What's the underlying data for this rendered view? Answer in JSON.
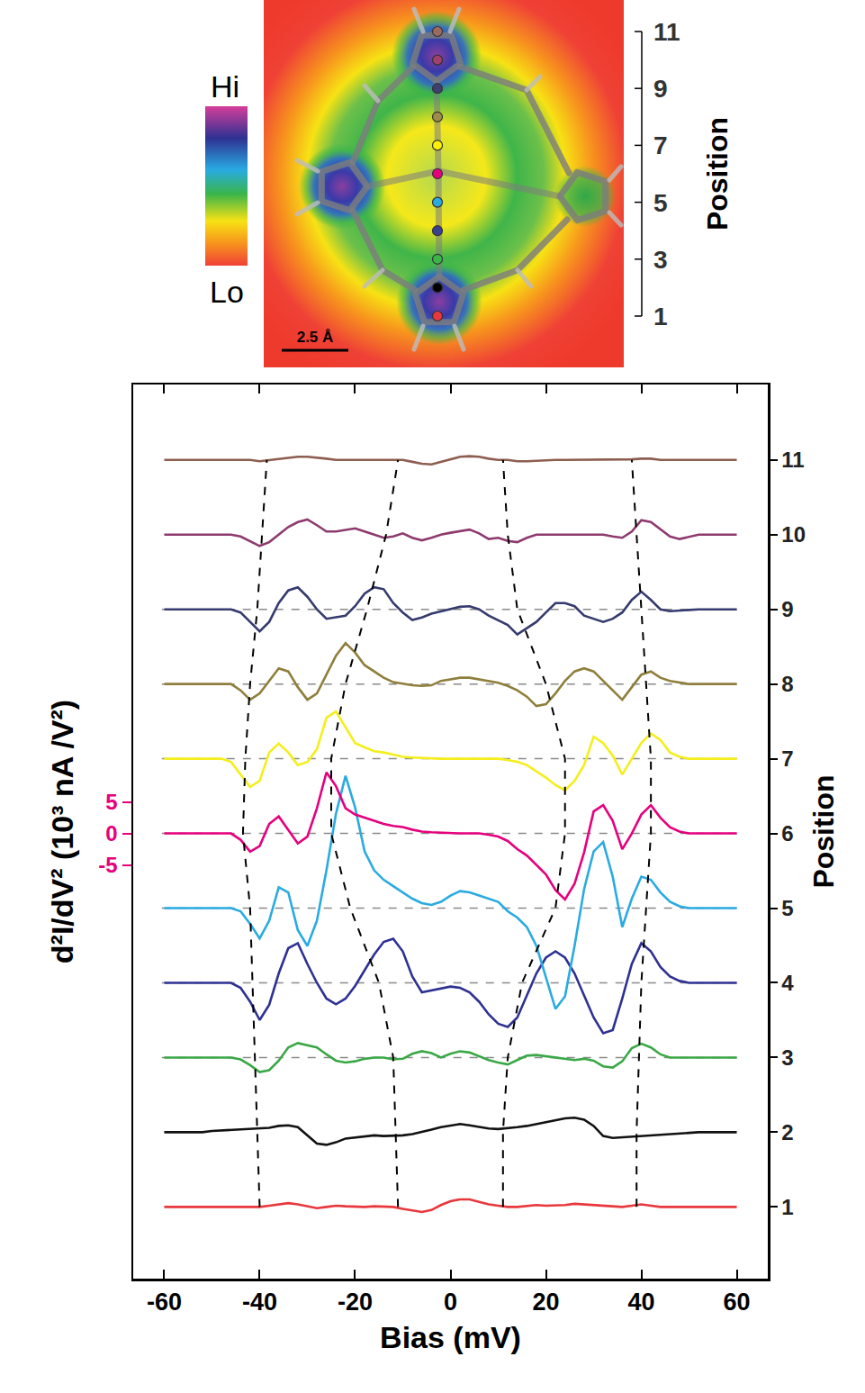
{
  "image": {
    "colorbar": {
      "high": "Hi",
      "low": "Lo"
    },
    "scale_bar": "2.5 Å",
    "axis_title": "Position",
    "ticks": [
      1,
      3,
      5,
      7,
      9,
      11
    ],
    "points": [
      {
        "position": 1,
        "color": "#e8383d"
      },
      {
        "position": 2,
        "color": "#000000"
      },
      {
        "position": 3,
        "color": "#39b54a"
      },
      {
        "position": 4,
        "color": "#3b3f8f"
      },
      {
        "position": 5,
        "color": "#29abe2"
      },
      {
        "position": 6,
        "color": "#e6007e"
      },
      {
        "position": 7,
        "color": "#fff200"
      },
      {
        "position": 8,
        "color": "#9e8c4a"
      },
      {
        "position": 9,
        "color": "#3e3f6e"
      },
      {
        "position": 10,
        "color": "#a0406e"
      },
      {
        "position": 11,
        "color": "#9c6b5e"
      }
    ]
  },
  "chart_data": {
    "type": "line",
    "x_label": "Bias (mV)",
    "y_label": "d²I/dV² (10³ nA /V²)",
    "y2_label": "Position",
    "xlim": [
      -66.5,
      66.5
    ],
    "xticks": [
      -60,
      -40,
      -20,
      0,
      20,
      40,
      60
    ],
    "ylim": [
      -70.7,
      71.3
    ],
    "yticks": [
      -5,
      0,
      5
    ],
    "y2lim": [
      0.04,
      12.01
    ],
    "y2ticks": [
      1,
      2,
      3,
      4,
      5,
      6,
      7,
      8,
      9,
      10,
      11
    ],
    "zero_lines": [
      3,
      4,
      5,
      6,
      7,
      8,
      9
    ],
    "guides": [
      {
        "line_style": "dash",
        "x": [
          -40,
          -40.5,
          -41,
          -41.5,
          -42,
          -43.5,
          -43,
          -42,
          -40.5,
          -39.5,
          -38.5
        ],
        "y": [
          1,
          2,
          3,
          4,
          5,
          6,
          7,
          8,
          9,
          10,
          11
        ]
      },
      {
        "line_style": "dash",
        "x": [
          -11,
          -11.5,
          -12,
          -15,
          -21,
          -25,
          -25,
          -22,
          -17.5,
          -13.5,
          -11
        ],
        "y": [
          1,
          2,
          3,
          4,
          5,
          6,
          7,
          8,
          9,
          10,
          11
        ]
      },
      {
        "line_style": "dash",
        "x": [
          11,
          11,
          12,
          15,
          22,
          24,
          24,
          20,
          14,
          12,
          11
        ],
        "y": [
          1,
          2,
          3,
          4,
          5,
          6,
          7,
          8,
          9,
          10,
          11
        ]
      },
      {
        "line_style": "dash",
        "x": [
          39,
          39,
          39.5,
          40,
          41,
          42,
          42,
          41,
          40,
          39,
          38
        ],
        "y": [
          1,
          2,
          3,
          4,
          5,
          6,
          7,
          8,
          9,
          10,
          11
        ]
      }
    ],
    "x": [
      -60,
      -58,
      -56,
      -54,
      -52,
      -50,
      -48,
      -46,
      -44,
      -42,
      -40,
      -38,
      -36,
      -34,
      -32,
      -30,
      -28,
      -26,
      -24,
      -22,
      -20,
      -18,
      -16,
      -14,
      -12,
      -10,
      -8,
      -6,
      -4,
      -2,
      0,
      2,
      4,
      6,
      8,
      10,
      12,
      14,
      16,
      18,
      20,
      22,
      24,
      26,
      28,
      30,
      32,
      34,
      36,
      38,
      40,
      42,
      44,
      46,
      48,
      50,
      52,
      54,
      56,
      58,
      60
    ],
    "series": [
      {
        "position": 1,
        "color": "#e8383d",
        "values": [
          0,
          0,
          0,
          0,
          0,
          0,
          0,
          0,
          0,
          0,
          0,
          0.2,
          0.4,
          0.6,
          0.4,
          0.1,
          -0.2,
          0,
          0.2,
          0.1,
          0,
          0,
          0.1,
          0.1,
          0,
          -0.3,
          -0.6,
          -0.8,
          -0.5,
          0.3,
          0.9,
          1.2,
          1.2,
          0.8,
          0.4,
          0.2,
          0,
          0,
          0.2,
          0.3,
          0.2,
          0.2,
          0.3,
          0.5,
          0.4,
          0.2,
          0.1,
          0,
          0,
          0.2,
          0.4,
          0.2,
          0,
          0,
          0,
          0,
          0,
          0,
          0,
          0,
          0
        ]
      },
      {
        "position": 2,
        "color": "#111111",
        "values": [
          0,
          0,
          0,
          0,
          0,
          0.2,
          0.3,
          0.4,
          0.5,
          0.6,
          0.6,
          0.7,
          1.0,
          1.1,
          0.8,
          -0.5,
          -1.8,
          -2.0,
          -1.6,
          -1.0,
          -0.8,
          -0.6,
          -0.5,
          -0.6,
          -0.6,
          -0.5,
          -0.3,
          0,
          0.4,
          0.8,
          1.1,
          1.3,
          1.1,
          0.8,
          0.6,
          0.5,
          0.6,
          0.8,
          1.0,
          1.3,
          1.6,
          1.9,
          2.2,
          2.3,
          2.0,
          1.0,
          -0.6,
          -0.9,
          -0.8,
          -0.6,
          -0.5,
          -0.5,
          -0.4,
          -0.3,
          -0.2,
          -0.1,
          0,
          0,
          0,
          0,
          0
        ]
      },
      {
        "position": 3,
        "color": "#3aa846",
        "values": [
          0,
          0,
          0,
          0,
          0,
          0,
          0,
          0,
          -0.3,
          -1.2,
          -2.3,
          -2.0,
          -0.5,
          1.6,
          2.3,
          2.0,
          1.6,
          0.5,
          -0.5,
          -0.8,
          -0.6,
          -0.2,
          0,
          0,
          -0.3,
          -0.2,
          0.6,
          1.0,
          0.7,
          0,
          0.6,
          1.0,
          0.8,
          0.2,
          -0.4,
          -0.8,
          -1.1,
          -0.4,
          0.3,
          0.4,
          0.2,
          0,
          -0.3,
          -0.4,
          -0.2,
          -0.5,
          -1.4,
          -1.6,
          -0.6,
          1.5,
          2.2,
          1.6,
          0.5,
          0,
          0,
          0,
          0,
          0,
          0,
          0,
          0
        ]
      },
      {
        "position": 4,
        "color": "#2e3192",
        "values": [
          0,
          0,
          0,
          0,
          0,
          0,
          0,
          0,
          -0.8,
          -3.0,
          -5.9,
          -3.5,
          1.5,
          5.5,
          6.3,
          3.0,
          0,
          -2.5,
          -3.4,
          -2.5,
          -0.5,
          2.0,
          4.5,
          6.5,
          7.0,
          5.0,
          1.0,
          -1.5,
          -1.2,
          -0.8,
          -0.6,
          -0.8,
          -1.5,
          -3.0,
          -5.0,
          -6.5,
          -7.0,
          -5.5,
          -2.0,
          1.5,
          4.0,
          5.0,
          4.0,
          1.5,
          -2.0,
          -5.5,
          -8.0,
          -7.5,
          -2.5,
          3.0,
          6.3,
          5.0,
          2.5,
          1.0,
          0.3,
          0,
          0,
          0,
          0,
          0,
          0
        ]
      },
      {
        "position": 5,
        "color": "#29abe2",
        "values": [
          0,
          0,
          0,
          0,
          0,
          0,
          0,
          0,
          -0.5,
          -2.5,
          -4.8,
          -2.0,
          3.3,
          2.5,
          -3.5,
          -6.0,
          -2.0,
          6.0,
          15.0,
          21.0,
          16.0,
          9.0,
          6.0,
          4.5,
          3.5,
          2.5,
          1.5,
          0.8,
          0.5,
          1.0,
          2.0,
          2.7,
          2.5,
          2.0,
          1.5,
          1.0,
          -0.5,
          -1.5,
          -3.0,
          -6.0,
          -11.0,
          -16.0,
          -14.0,
          -6.0,
          3.0,
          9.0,
          10.5,
          5.0,
          -3.0,
          1.5,
          5.0,
          4.5,
          2.5,
          1.0,
          0.3,
          0,
          0,
          0,
          0,
          0,
          0
        ]
      },
      {
        "position": 6,
        "color": "#e6007e",
        "values": [
          0,
          0,
          0,
          0,
          0,
          0,
          0,
          0,
          -1.0,
          -2.9,
          -2.0,
          1.5,
          2.7,
          0.5,
          -1.6,
          -0.5,
          4.0,
          9.7,
          7.5,
          4.0,
          3.0,
          2.5,
          2.0,
          1.5,
          1.2,
          1.0,
          0.6,
          0.3,
          0.2,
          0.1,
          0,
          0,
          0,
          0,
          -0.2,
          -0.5,
          -1.2,
          -2.5,
          -3.5,
          -5.0,
          -6.5,
          -9.0,
          -10.5,
          -8.0,
          -3.0,
          3.5,
          4.5,
          2.0,
          -2.5,
          0,
          3.0,
          4.5,
          2.5,
          1.0,
          0.3,
          0,
          0,
          0,
          0,
          0,
          0
        ]
      },
      {
        "position": 7,
        "color": "#f5ee1c",
        "values": [
          0,
          0,
          0,
          0,
          0,
          0,
          0,
          -0.5,
          -2.5,
          -4.5,
          -3.5,
          1.0,
          2.4,
          1.0,
          -1.0,
          -0.5,
          1.5,
          6.5,
          7.5,
          5.0,
          2.5,
          1.8,
          1.2,
          1.0,
          0.6,
          0.3,
          0.2,
          0.1,
          0,
          0,
          0,
          0,
          0,
          0,
          0,
          0,
          -0.2,
          -0.5,
          -1.0,
          -2.0,
          -3.0,
          -4.2,
          -5.0,
          -3.5,
          -1.0,
          3.5,
          2.5,
          0.5,
          -2.5,
          0,
          2.5,
          4.0,
          3.0,
          1.0,
          0.3,
          0,
          0,
          0,
          0,
          0,
          0
        ]
      },
      {
        "position": 8,
        "color": "#8f7f3c",
        "values": [
          0,
          0,
          0,
          0,
          0,
          0,
          0,
          0,
          -1.0,
          -2.5,
          -1.5,
          0.5,
          2.5,
          2.0,
          -0.5,
          -2.5,
          -1.5,
          1.5,
          4.5,
          6.5,
          5.0,
          3.0,
          2.0,
          1.0,
          0.3,
          0,
          -0.2,
          -0.3,
          -0.2,
          0.5,
          0.8,
          1.0,
          1.0,
          0.7,
          0.5,
          0.2,
          -0.3,
          -1.0,
          -2.0,
          -3.5,
          -3.2,
          -1.5,
          0.5,
          2.0,
          2.5,
          2.0,
          0.5,
          -1.0,
          -2.5,
          -0.5,
          1.5,
          2.0,
          1.0,
          0.5,
          0.2,
          0,
          0,
          0,
          0,
          0,
          0
        ]
      },
      {
        "position": 9,
        "color": "#353b6e",
        "values": [
          0,
          0,
          0,
          0,
          0,
          0,
          0,
          0,
          -0.5,
          -2.0,
          -3.5,
          -2.0,
          1.0,
          3.0,
          3.5,
          2.0,
          0,
          -1.5,
          -1.2,
          -1.0,
          0.5,
          2.5,
          3.5,
          3.2,
          1.0,
          -0.5,
          -1.7,
          -1.3,
          -0.7,
          -0.3,
          0,
          0.4,
          0.5,
          0,
          -1.0,
          -1.8,
          -2.5,
          -4.0,
          -3.0,
          -2.0,
          -0.5,
          1.0,
          1.0,
          0.5,
          -1.0,
          -1.5,
          -2.0,
          -1.5,
          -0.5,
          1.5,
          2.8,
          1.5,
          0,
          -0.3,
          -0.2,
          0,
          0,
          0,
          0,
          0,
          0
        ]
      },
      {
        "position": 10,
        "color": "#8e3a6e",
        "values": [
          0,
          0,
          0,
          0,
          0,
          0,
          0,
          0,
          -0.3,
          -1.0,
          -1.8,
          -1.2,
          0,
          1.2,
          2.0,
          2.4,
          1.5,
          0.5,
          0.5,
          0.8,
          1.0,
          0.5,
          0,
          -0.5,
          -0.3,
          0.2,
          -0.5,
          -0.9,
          -0.5,
          0,
          0.3,
          0.6,
          0.8,
          0.2,
          -0.7,
          -0.5,
          -1.0,
          -1.2,
          -0.5,
          0,
          0,
          0,
          0,
          0,
          0,
          0,
          0,
          -0.3,
          -0.5,
          0.5,
          2.3,
          2.0,
          0.8,
          -0.3,
          -0.7,
          -0.3,
          0,
          0,
          0,
          0,
          0
        ]
      },
      {
        "position": 11,
        "color": "#8d5e50",
        "values": [
          0,
          0,
          0,
          0,
          0,
          0,
          0,
          0,
          0,
          0,
          -0.2,
          0,
          0.1,
          0.3,
          0.5,
          0.5,
          0.4,
          0.2,
          0,
          0,
          0,
          0,
          0,
          0,
          0,
          0,
          -0.3,
          -0.6,
          -0.7,
          -0.3,
          0.2,
          0.5,
          0.6,
          0.5,
          0.2,
          0,
          0,
          -0.2,
          -0.2,
          -0.1,
          0,
          0,
          0,
          0,
          0,
          0,
          0,
          0,
          0,
          0.1,
          0.2,
          0.2,
          0,
          0,
          0,
          0,
          0,
          0,
          0,
          0,
          0
        ]
      }
    ]
  }
}
